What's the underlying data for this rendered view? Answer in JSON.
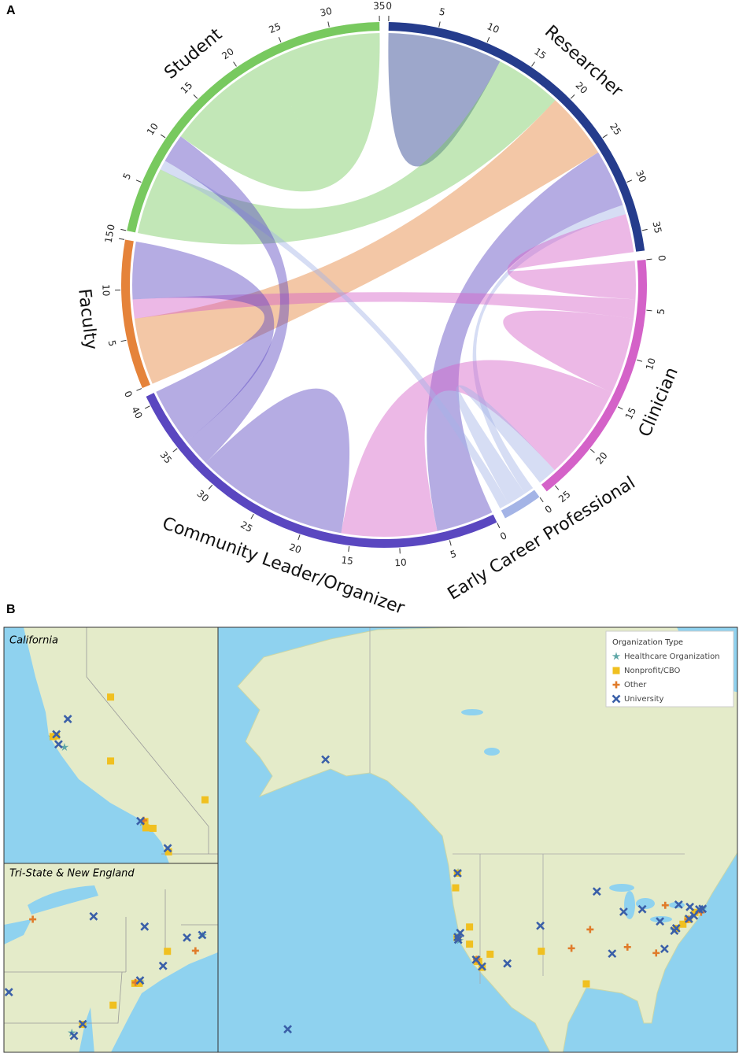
{
  "chart_data": [
    {
      "type": "chord",
      "panel": "A",
      "groups": [
        {
          "name": "Researcher",
          "color": "#253c8c",
          "ticks": [
            0,
            5,
            10,
            15,
            20,
            25,
            30,
            35
          ]
        },
        {
          "name": "Clinician",
          "color": "#d462c8",
          "ticks": [
            0,
            5,
            10,
            15,
            20,
            25
          ]
        },
        {
          "name": "Early Career Professional",
          "color": "#a4b4e6",
          "ticks": [
            0
          ]
        },
        {
          "name": "Community Leader/Organizer",
          "color": "#5a47c0",
          "ticks": [
            0,
            5,
            10,
            15,
            20,
            25,
            30,
            35,
            40
          ]
        },
        {
          "name": "Faculty",
          "color": "#e5833a",
          "ticks": [
            0,
            5,
            10,
            15
          ]
        },
        {
          "name": "Student",
          "color": "#78c95f",
          "ticks": [
            0,
            5,
            10,
            15,
            20,
            25,
            30,
            35
          ]
        }
      ],
      "links": [
        {
          "source": "Researcher",
          "target": "Researcher",
          "value": 6
        },
        {
          "source": "Student",
          "target": "Researcher",
          "value": 7
        },
        {
          "source": "Faculty",
          "target": "Researcher",
          "value": 7
        },
        {
          "source": "Community Leader/Organizer",
          "target": "Researcher",
          "value": 6
        },
        {
          "source": "Early Career Professional",
          "target": "Researcher",
          "value": 1
        },
        {
          "source": "Clinician",
          "target": "Researcher",
          "value": 4
        },
        {
          "source": "Clinician",
          "target": "Faculty",
          "value": 2
        },
        {
          "source": "Clinician",
          "target": "Clinician",
          "value": 4
        },
        {
          "source": "Clinician",
          "target": "Community Leader/Organizer",
          "value": 10
        },
        {
          "source": "Early Career Professional",
          "target": "Clinician",
          "value": 2
        },
        {
          "source": "Early Career Professional",
          "target": "Student",
          "value": 1
        },
        {
          "source": "Community Leader/Organizer",
          "target": "Community Leader/Organizer",
          "value": 8
        },
        {
          "source": "Community Leader/Organizer",
          "target": "Student",
          "value": 3
        },
        {
          "source": "Community Leader/Organizer",
          "target": "Faculty",
          "value": 6
        },
        {
          "source": "Student",
          "target": "Student",
          "value": 12
        }
      ]
    },
    {
      "type": "map",
      "panel": "B",
      "legend_title": "Organization Type",
      "insets": [
        {
          "title": "California"
        },
        {
          "title": "Tri-State & New England"
        }
      ],
      "series": [
        {
          "name": "Healthcare Organization",
          "color": "#5fa7a7",
          "marker": "star",
          "x": [
            -122.2,
            -122.45,
            -121.9,
            -118.35,
            -77.1,
            -73.94,
            -71.08
          ],
          "y": [
            47.7,
            37.75,
            37.3,
            34.0,
            39.0,
            40.75,
            42.34
          ]
        },
        {
          "name": "Nonprofit/CBO",
          "color": "#f0c020",
          "marker": "square",
          "x": [
            -122.33,
            -122.7,
            -122.42,
            -122.27,
            -118.24,
            -118.19,
            -117.87,
            -117.16,
            -119.8,
            -119.8,
            -115.5,
            -95.4,
            -75.2,
            -74.0,
            -74.2,
            -72.7,
            -76.6,
            -104.8
          ],
          "y": [
            47.6,
            45.5,
            37.77,
            37.8,
            34.05,
            33.77,
            33.75,
            32.72,
            36.7,
            39.5,
            35.0,
            29.8,
            39.95,
            40.7,
            40.7,
            41.8,
            39.29,
            35.5
          ]
        },
        {
          "name": "Other",
          "color": "#e07b2a",
          "marker": "plus",
          "x": [
            -94.6,
            -86.8,
            -80.8,
            -78.9,
            -118.3,
            -74.17,
            -71.41,
            -98.5
          ],
          "y": [
            39.1,
            36.2,
            35.2,
            42.9,
            34.1,
            40.73,
            41.82,
            36.0
          ]
        },
        {
          "name": "University",
          "color": "#3a5fa8",
          "marker": "x",
          "x": [
            -149.9,
            -157.8,
            -122.3,
            -122.27,
            -122.17,
            -118.44,
            -117.2,
            -121.75,
            -111.9,
            -105.0,
            -93.2,
            -87.6,
            -83.7,
            -80.0,
            -71.1,
            -73.96,
            -76.6,
            -77.0,
            -90.0,
            -79.05,
            -71.8,
            -72.9,
            -73.75,
            -76.1
          ],
          "y": [
            61.2,
            21.3,
            47.6,
            37.87,
            37.43,
            34.07,
            32.88,
            38.54,
            33.4,
            39.7,
            44.97,
            41.9,
            42.3,
            40.4,
            42.36,
            40.8,
            39.3,
            38.9,
            35.1,
            35.9,
            42.27,
            41.3,
            42.65,
            43.0
          ]
        }
      ]
    }
  ]
}
